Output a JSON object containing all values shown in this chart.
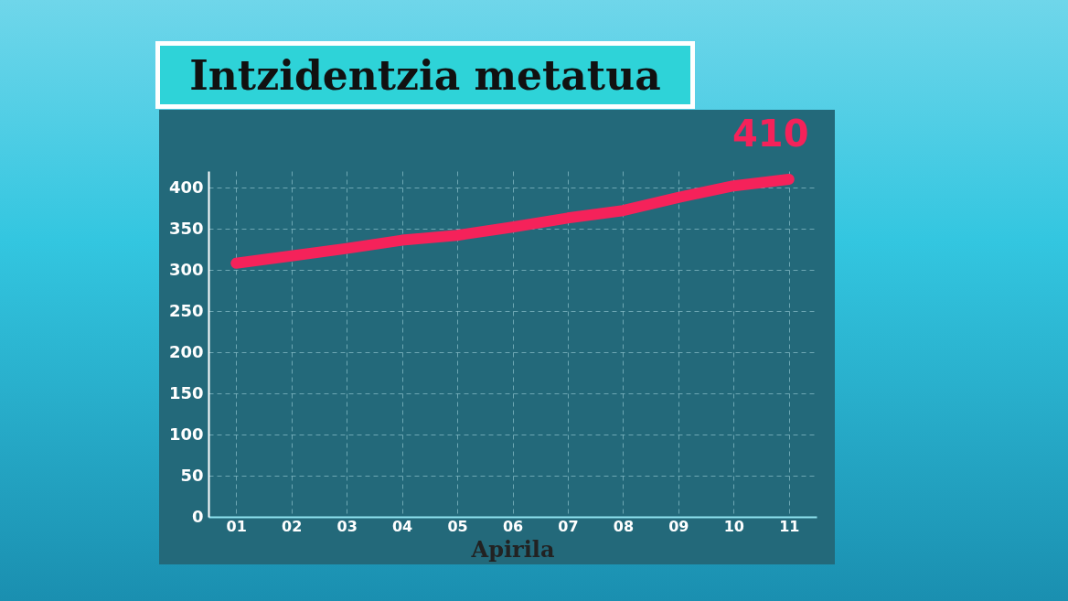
{
  "chart_data": {
    "type": "line",
    "title": "Intzidentzia metatua",
    "xlabel": "Apirila",
    "categories": [
      "01",
      "02",
      "03",
      "04",
      "05",
      "06",
      "07",
      "08",
      "09",
      "10",
      "11"
    ],
    "series": [
      {
        "color": "#f5225a",
        "values": [
          308,
          317,
          326,
          336,
          342,
          352,
          363,
          372,
          388,
          402,
          410
        ],
        "value_labels": [
          null,
          null,
          null,
          null,
          null,
          null,
          null,
          null,
          null,
          null,
          "410"
        ]
      }
    ],
    "ylim": [
      0,
      420
    ],
    "yticks": [
      0,
      50,
      100,
      150,
      200,
      250,
      300,
      350,
      400
    ],
    "grid": true,
    "line_style": "solid",
    "marker": "none"
  }
}
